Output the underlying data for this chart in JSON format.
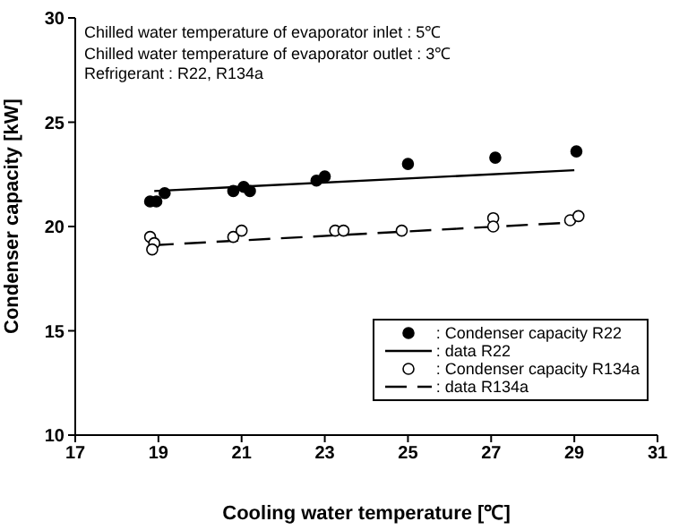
{
  "chart_data": {
    "type": "scatter",
    "xlabel": "Cooling water temperature [℃]",
    "ylabel": "Condenser capacity [kW]",
    "annotations": [
      "Chilled water temperature of evaporator inlet : 5℃",
      "Chilled water temperature of evaporator outlet : 3℃",
      "Refrigerant : R22, R134a"
    ],
    "xlim": [
      17,
      31
    ],
    "xticks": [
      17,
      19,
      21,
      23,
      25,
      27,
      29,
      31
    ],
    "ylim": [
      10,
      30
    ],
    "yticks": [
      10,
      15,
      20,
      25,
      30
    ],
    "grid": false,
    "legend": "bottom right",
    "series": [
      {
        "name": ": Condenser capacity R22",
        "color": "#000000",
        "marker": "circle",
        "x": [
          18.8,
          18.95,
          19.15,
          20.8,
          21.05,
          21.2,
          22.8,
          23.0,
          25.0,
          27.1,
          29.05
        ],
        "values": [
          21.2,
          21.2,
          21.6,
          21.7,
          21.9,
          21.7,
          22.2,
          22.4,
          23.0,
          23.3,
          23.6
        ]
      },
      {
        "name": ": data R22",
        "type": "line",
        "color": "#000000",
        "line_style": "solid",
        "x": [
          18.9,
          29
        ],
        "values": [
          21.7,
          22.7
        ]
      },
      {
        "name": ": Condenser capacity R134a",
        "color": "#ffffff",
        "marker": "circle",
        "x": [
          18.8,
          18.9,
          18.85,
          20.8,
          21.0,
          23.25,
          23.45,
          24.85,
          27.05,
          27.05,
          28.9,
          29.1
        ],
        "values": [
          19.5,
          19.2,
          18.9,
          19.5,
          19.8,
          19.8,
          19.8,
          19.8,
          20.4,
          20.0,
          20.3,
          20.5
        ]
      },
      {
        "name": ": data R134a",
        "type": "line",
        "color": "#000000",
        "line_style": "dashed",
        "x": [
          18.85,
          29
        ],
        "values": [
          19.1,
          20.2
        ]
      }
    ]
  }
}
